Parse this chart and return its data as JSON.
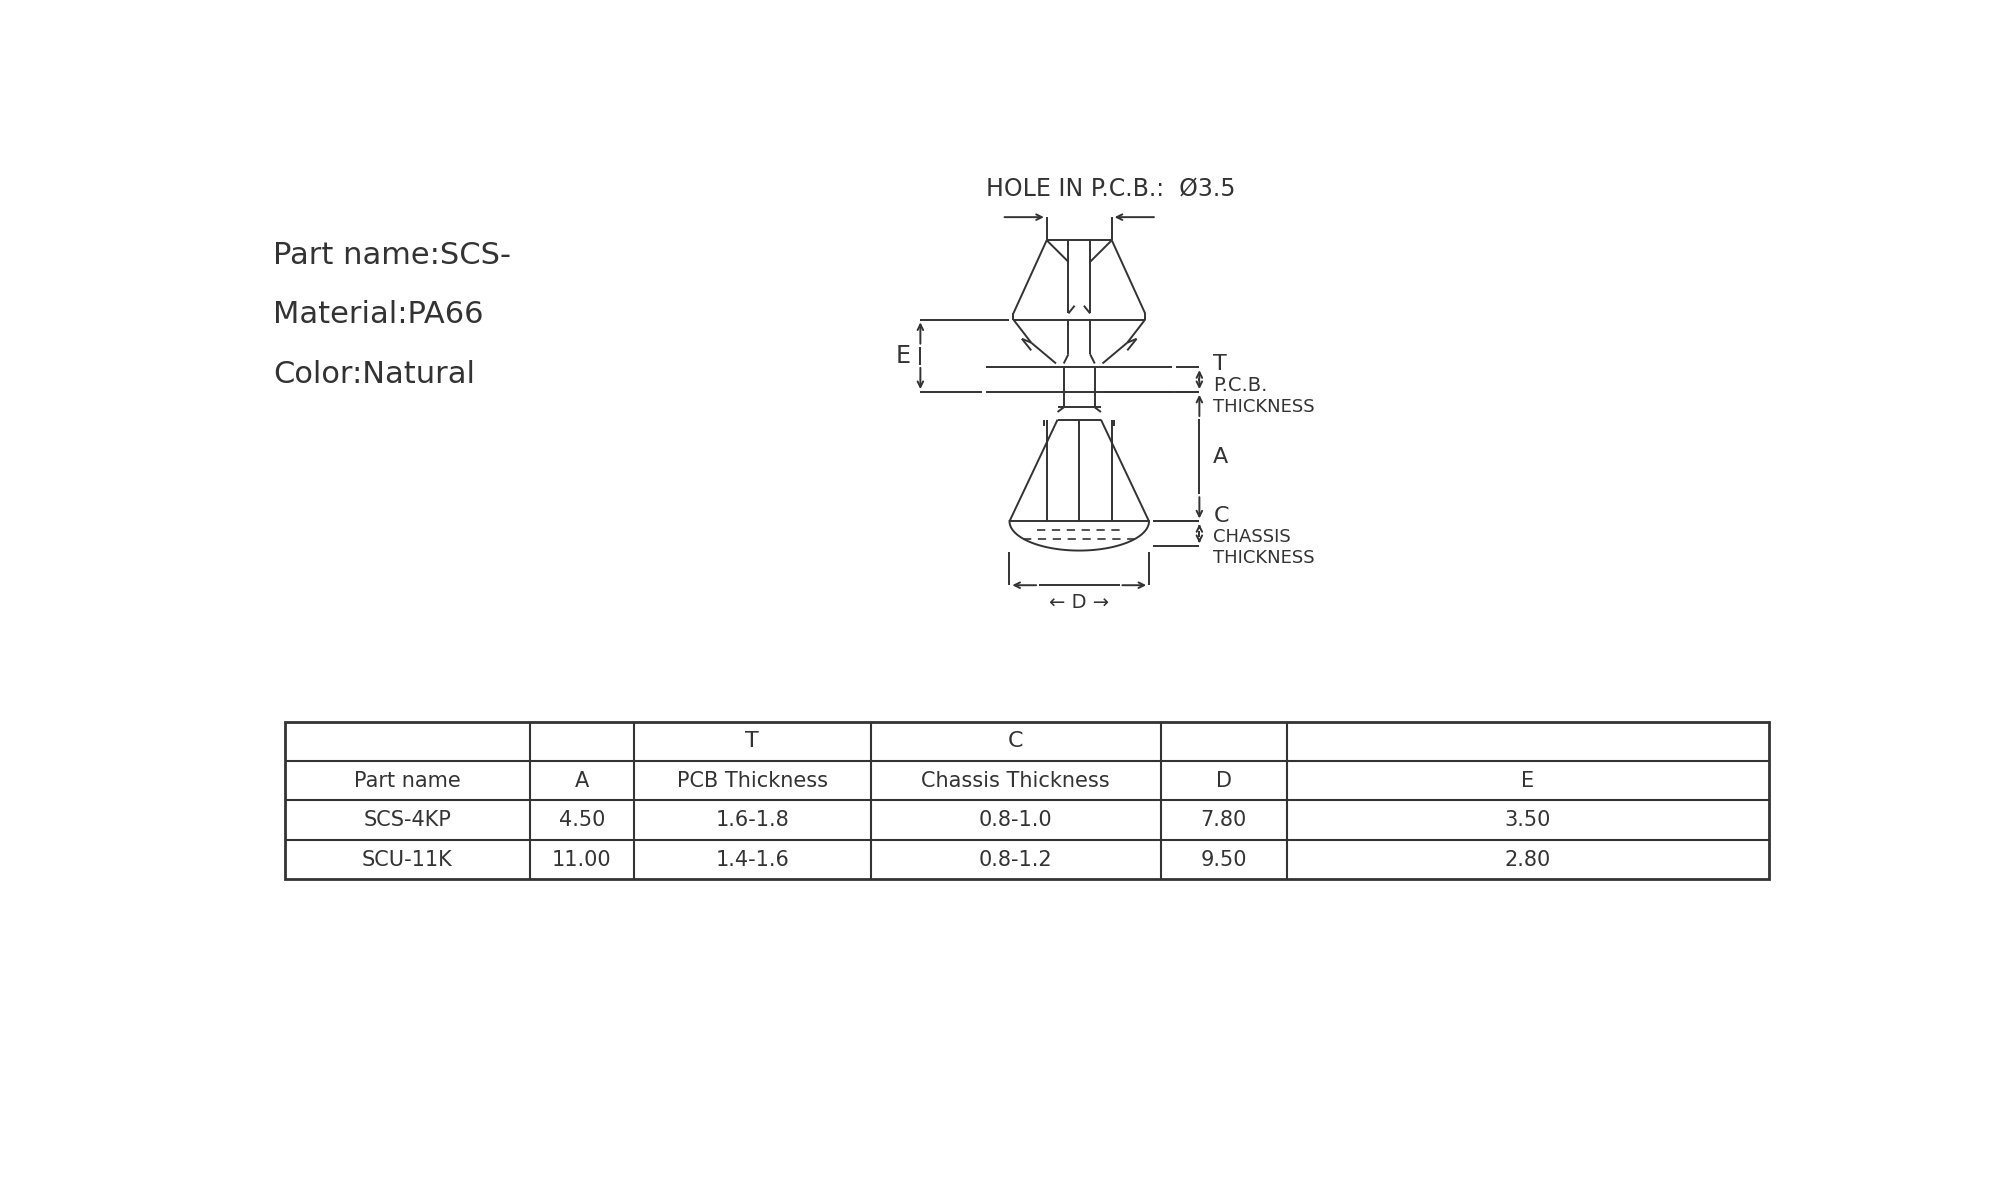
{
  "bg_color": "#ffffff",
  "line_color": "#333333",
  "text_color": "#333333",
  "hole_title": "HOLE IN P.C.B.:  Ø3.5",
  "info_lines": [
    "Part name:SCS-",
    "Material:PA66",
    "Color:Natural"
  ],
  "table_data": [
    [
      "SCS-4KP",
      "4.50",
      "1.6-1.8",
      "0.8-1.0",
      "7.80",
      "3.50"
    ],
    [
      "SCU-11K",
      "11.00",
      "1.4-1.6",
      "0.8-1.2",
      "9.50",
      "2.80"
    ]
  ],
  "figsize": [
    20.0,
    12.0
  ],
  "dpi": 100
}
